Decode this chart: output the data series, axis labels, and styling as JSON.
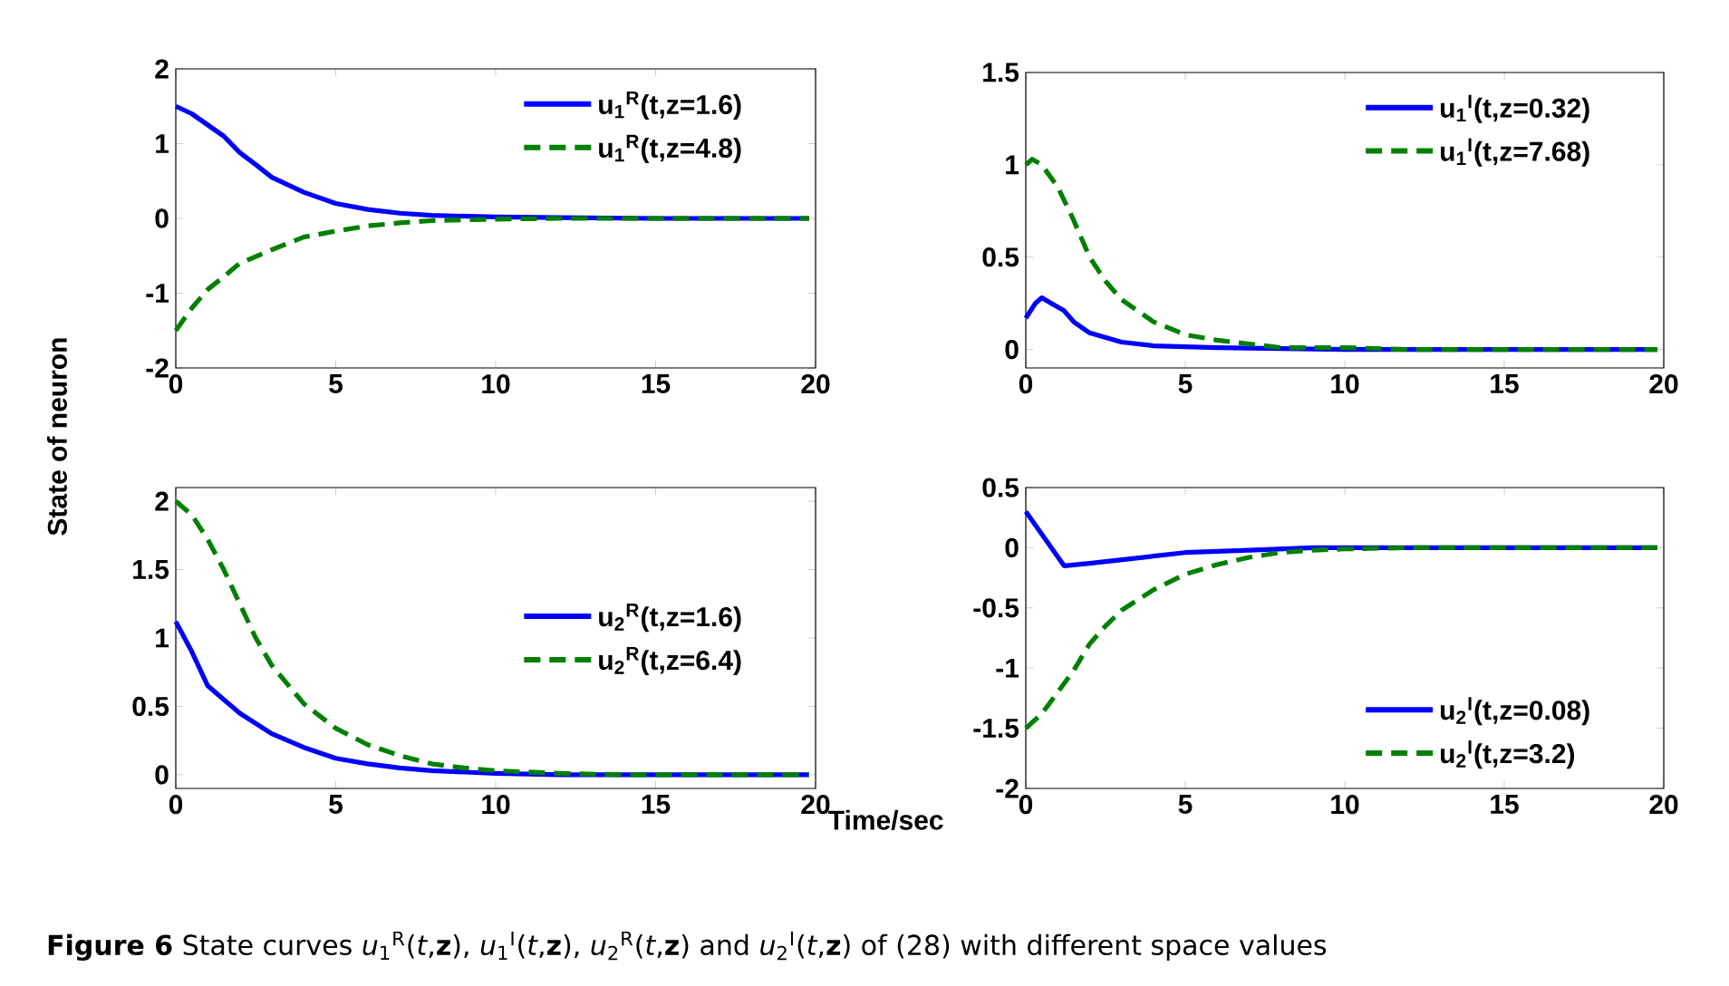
{
  "chart_data": [
    {
      "type": "line",
      "xlim": [
        0,
        20
      ],
      "ylim": [
        -2,
        2
      ],
      "xticks": [
        0,
        5,
        10,
        15,
        20
      ],
      "yticks": [
        -2,
        -1,
        0,
        1,
        2
      ],
      "legend": "top right",
      "grid": false,
      "series": [
        {
          "name": "u$_{1}$$^{R}$(t,z=1.6)",
          "color": "#0000ff",
          "line_style": "solid",
          "x": [
            0,
            0.5,
            1,
            1.5,
            2,
            2.5,
            3,
            4,
            5,
            6,
            7,
            8,
            10,
            12,
            15,
            19.8
          ],
          "values": [
            1.5,
            1.4,
            1.25,
            1.1,
            0.88,
            0.72,
            0.55,
            0.35,
            0.2,
            0.12,
            0.07,
            0.04,
            0.02,
            0.01,
            0,
            0
          ]
        },
        {
          "name": "u$_{1}$$^{R}$(t,z=4.8)",
          "color": "#008000",
          "line_style": "dashed",
          "x": [
            0,
            0.5,
            1,
            1.5,
            2,
            3,
            4,
            5,
            6,
            7,
            8,
            10,
            12,
            19.8
          ],
          "values": [
            -1.5,
            -1.2,
            -0.95,
            -0.78,
            -0.6,
            -0.42,
            -0.25,
            -0.17,
            -0.1,
            -0.06,
            -0.03,
            -0.01,
            0,
            0
          ]
        }
      ]
    },
    {
      "type": "line",
      "xlim": [
        0,
        20
      ],
      "ylim": [
        -0.1,
        1.5
      ],
      "xticks": [
        0,
        5,
        10,
        15,
        20
      ],
      "yticks": [
        0,
        0.5,
        1,
        1.5
      ],
      "legend": "top right",
      "grid": false,
      "series": [
        {
          "name": "u$_{1}$$^{I}$(t,z=0.32)",
          "color": "#0000ff",
          "line_style": "solid",
          "x": [
            0,
            0.3,
            0.5,
            0.8,
            1.2,
            1.5,
            2,
            3,
            4,
            6,
            10,
            19.8
          ],
          "values": [
            0.17,
            0.25,
            0.28,
            0.25,
            0.21,
            0.15,
            0.09,
            0.04,
            0.02,
            0.01,
            0,
            0
          ]
        },
        {
          "name": "u$_{1}$$^{I}$(t,z=7.68)",
          "color": "#008000",
          "line_style": "dashed",
          "x": [
            0,
            0.2,
            0.5,
            1,
            1.5,
            2,
            2.5,
            3,
            4,
            5,
            6,
            7,
            8,
            10,
            12,
            19.8
          ],
          "values": [
            1.0,
            1.03,
            1.0,
            0.88,
            0.7,
            0.5,
            0.37,
            0.27,
            0.15,
            0.08,
            0.05,
            0.03,
            0.01,
            0.01,
            0,
            0
          ]
        }
      ]
    },
    {
      "type": "line",
      "xlim": [
        0,
        20
      ],
      "ylim": [
        -0.1,
        2.1
      ],
      "xticks": [
        0,
        5,
        10,
        15,
        20
      ],
      "yticks": [
        0,
        0.5,
        1,
        1.5,
        2
      ],
      "legend": "right",
      "grid": false,
      "ylabel": "State of neuron",
      "xlabel": "Time/sec",
      "annotations": [
        "**Figure 6**  State curves *u*$_{1}$$^{R}$(*t*,**z**), *u*$_{1}$$^{I}$(*t*,**z**), *u*$_{2}$$^{R}$(*t*,**z**) and *u*$_{2}$$^{I}$(*t*,**z**) of (28) with different space values"
      ],
      "series": [
        {
          "name": "u$_{2}$$^{R}$(t,z=1.6)",
          "color": "#0000ff",
          "line_style": "solid",
          "x": [
            0,
            0.5,
            1,
            1.5,
            2,
            3,
            4,
            5,
            6,
            7,
            8,
            10,
            12,
            19.8
          ],
          "values": [
            1.12,
            0.9,
            0.65,
            0.55,
            0.45,
            0.3,
            0.2,
            0.12,
            0.08,
            0.05,
            0.03,
            0.01,
            0,
            0
          ]
        },
        {
          "name": "u$_{2}$$^{R}$(t,z=6.4)",
          "color": "#008000",
          "line_style": "dashed",
          "x": [
            0,
            0.5,
            1,
            1.5,
            2,
            2.5,
            3,
            4,
            5,
            6,
            7,
            8,
            9,
            10,
            12,
            14,
            19.8
          ],
          "values": [
            2.0,
            1.9,
            1.72,
            1.5,
            1.25,
            1.0,
            0.8,
            0.52,
            0.34,
            0.22,
            0.14,
            0.08,
            0.05,
            0.03,
            0.01,
            0,
            0
          ]
        }
      ]
    },
    {
      "type": "line",
      "xlim": [
        0,
        20
      ],
      "ylim": [
        -2,
        0.5
      ],
      "xticks": [
        0,
        5,
        10,
        15,
        20
      ],
      "yticks": [
        -2,
        -1.5,
        -1,
        -0.5,
        0,
        0.5
      ],
      "legend": "bottom right",
      "grid": false,
      "series": [
        {
          "name": "u$_{2}$$^{I}$(t,z=0.08)",
          "color": "#0000ff",
          "line_style": "solid",
          "x": [
            0,
            1.2,
            2,
            3,
            4,
            5,
            7,
            9,
            19.8
          ],
          "values": [
            0.3,
            -0.15,
            -0.13,
            -0.1,
            -0.07,
            -0.04,
            -0.02,
            0,
            0
          ]
        },
        {
          "name": "u$_{2}$$^{I}$(t,z=3.2)",
          "color": "#008000",
          "line_style": "dashed",
          "x": [
            0,
            0.5,
            1,
            1.5,
            2,
            2.5,
            3,
            4,
            5,
            6,
            7,
            8,
            9,
            10,
            12,
            19.8
          ],
          "values": [
            -1.5,
            -1.38,
            -1.2,
            -1.02,
            -0.8,
            -0.65,
            -0.52,
            -0.35,
            -0.22,
            -0.14,
            -0.08,
            -0.04,
            -0.02,
            -0.01,
            0,
            0
          ]
        }
      ]
    }
  ]
}
